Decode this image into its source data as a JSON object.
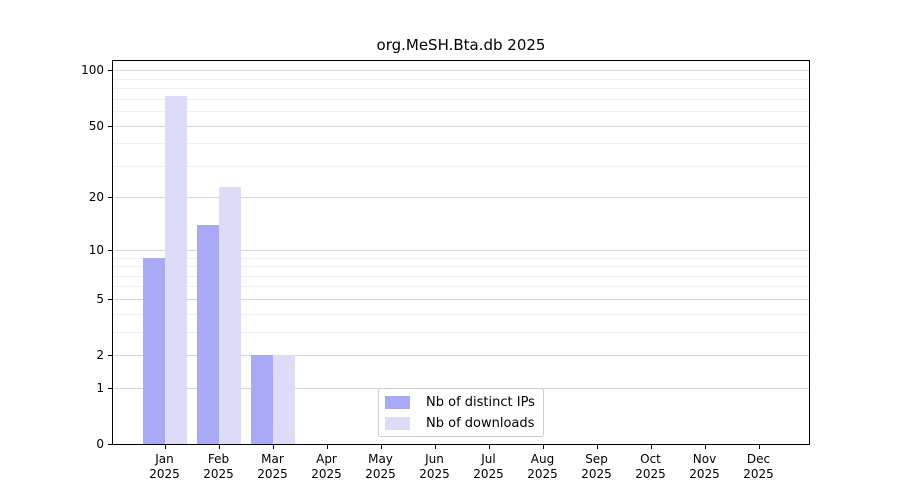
{
  "figure": {
    "title": "org.MeSH.Bta.db 2025"
  },
  "chart_data": {
    "type": "bar",
    "title": "org.MeSH.Bta.db 2025",
    "categories": [
      "Jan 2025",
      "Feb 2025",
      "Mar 2025",
      "Apr 2025",
      "May 2025",
      "Jun 2025",
      "Jul 2025",
      "Aug 2025",
      "Sep 2025",
      "Oct 2025",
      "Nov 2025",
      "Dec 2025"
    ],
    "series": [
      {
        "name": "Nb of distinct IPs",
        "color": "#a9a9f8",
        "values": [
          9,
          14,
          2,
          0,
          0,
          0,
          0,
          0,
          0,
          0,
          0,
          0
        ]
      },
      {
        "name": "Nb of downloads",
        "color": "#dcdcf8",
        "values": [
          72,
          23,
          2,
          0,
          0,
          0,
          0,
          0,
          0,
          0,
          0,
          0
        ]
      }
    ],
    "xlabel": "",
    "ylabel": "",
    "yscale": "log10(1+x)",
    "yticks": [
      0,
      1,
      2,
      5,
      10,
      20,
      50,
      100
    ],
    "minor_yticks": [
      3,
      4,
      6,
      7,
      8,
      9,
      30,
      40,
      60,
      70,
      80,
      90
    ],
    "ylim": [
      0,
      112
    ],
    "grid": true,
    "legend_position": "bottom-center-inside"
  },
  "colors": {
    "background": "#ffffff",
    "axis": "#000000",
    "major_grid": "#d6d6d6",
    "minor_grid": "#f0f0f0",
    "legend_border": "#cccccc",
    "bar_distinct_ips": "#a9a9f8",
    "bar_downloads": "#dcdcf8"
  }
}
